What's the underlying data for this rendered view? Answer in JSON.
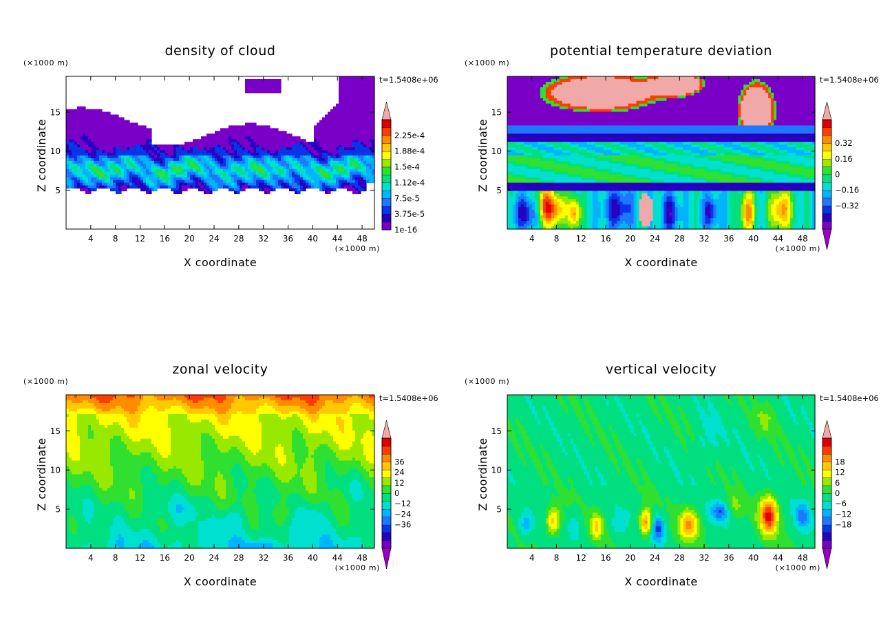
{
  "chart_data": [
    {
      "type": "heatmap",
      "title": "density of cloud",
      "xlabel": "X coordinate",
      "ylabel": "Z coordinate",
      "x_unit": "(×1000 m)",
      "y_unit": "(×1000 m)",
      "time_label": "t=1.5408e+06",
      "xlim": [
        0,
        50
      ],
      "ylim": [
        0,
        19.6
      ],
      "x_ticks": [
        4,
        8,
        12,
        16,
        20,
        24,
        28,
        32,
        36,
        40,
        44,
        48
      ],
      "y_ticks": [
        5,
        10,
        15
      ],
      "colorbar": {
        "labels": [
          "2.25e-4",
          "1.88e-4",
          "1.5e-4",
          "1.12e-4",
          "7.5e-5",
          "3.75e-5",
          "1e-16"
        ],
        "label_values": [
          0.000225,
          0.000188,
          0.00015,
          0.000112,
          7.5e-05,
          3.75e-05,
          1e-16
        ],
        "n_levels": 14,
        "max_arrow": true,
        "min_arrow": false
      }
    },
    {
      "type": "heatmap",
      "title": "potential temperature deviation",
      "xlabel": "X coordinate",
      "ylabel": "Z coordinate",
      "x_unit": "(×1000 m)",
      "y_unit": "(×1000 m)",
      "time_label": "t=1.5408e+06",
      "xlim": [
        0,
        50
      ],
      "ylim": [
        0,
        19.6
      ],
      "x_ticks": [
        4,
        8,
        12,
        16,
        20,
        24,
        28,
        32,
        36,
        40,
        44,
        48
      ],
      "y_ticks": [
        5,
        10,
        15
      ],
      "colorbar": {
        "labels": [
          "0.32",
          "0.16",
          "0",
          "−0.16",
          "−0.32"
        ],
        "label_values": [
          0.32,
          0.16,
          0,
          -0.16,
          -0.32
        ],
        "n_levels": 14,
        "max_arrow": true,
        "min_arrow": true
      }
    },
    {
      "type": "heatmap",
      "title": "zonal velocity",
      "xlabel": "X coordinate",
      "ylabel": "Z coordinate",
      "x_unit": "(×1000 m)",
      "y_unit": "(×1000 m)",
      "time_label": "t=1.5408e+06",
      "xlim": [
        0,
        50
      ],
      "ylim": [
        0,
        19.6
      ],
      "x_ticks": [
        4,
        8,
        12,
        16,
        20,
        24,
        28,
        32,
        36,
        40,
        44,
        48
      ],
      "y_ticks": [
        5,
        10,
        15
      ],
      "colorbar": {
        "labels": [
          "36",
          "24",
          "12",
          "0",
          "−12",
          "−24",
          "−36"
        ],
        "label_values": [
          36,
          24,
          12,
          0,
          -12,
          -24,
          -36
        ],
        "n_levels": 14,
        "max_arrow": true,
        "min_arrow": true
      }
    },
    {
      "type": "heatmap",
      "title": "vertical velocity",
      "xlabel": "X coordinate",
      "ylabel": "Z coordinate",
      "x_unit": "(×1000 m)",
      "y_unit": "(×1000 m)",
      "time_label": "t=1.5408e+06",
      "xlim": [
        0,
        50
      ],
      "ylim": [
        0,
        19.6
      ],
      "x_ticks": [
        4,
        8,
        12,
        16,
        20,
        24,
        28,
        32,
        36,
        40,
        44,
        48
      ],
      "y_ticks": [
        5,
        10,
        15
      ],
      "colorbar": {
        "labels": [
          "18",
          "12",
          "6",
          "0",
          "−6",
          "−12",
          "−18"
        ],
        "label_values": [
          18,
          12,
          6,
          0,
          -6,
          -12,
          -18
        ],
        "n_levels": 14,
        "max_arrow": true,
        "min_arrow": true
      }
    }
  ],
  "colors": {
    "palette": [
      "#7a00c8",
      "#2a00c0",
      "#0a34e8",
      "#1e78ff",
      "#00b4ff",
      "#00e0d0",
      "#00e080",
      "#30e030",
      "#98e800",
      "#ffff00",
      "#ffc800",
      "#ff8c00",
      "#ff3c00",
      "#e00000",
      "#f0a8a8"
    ]
  }
}
